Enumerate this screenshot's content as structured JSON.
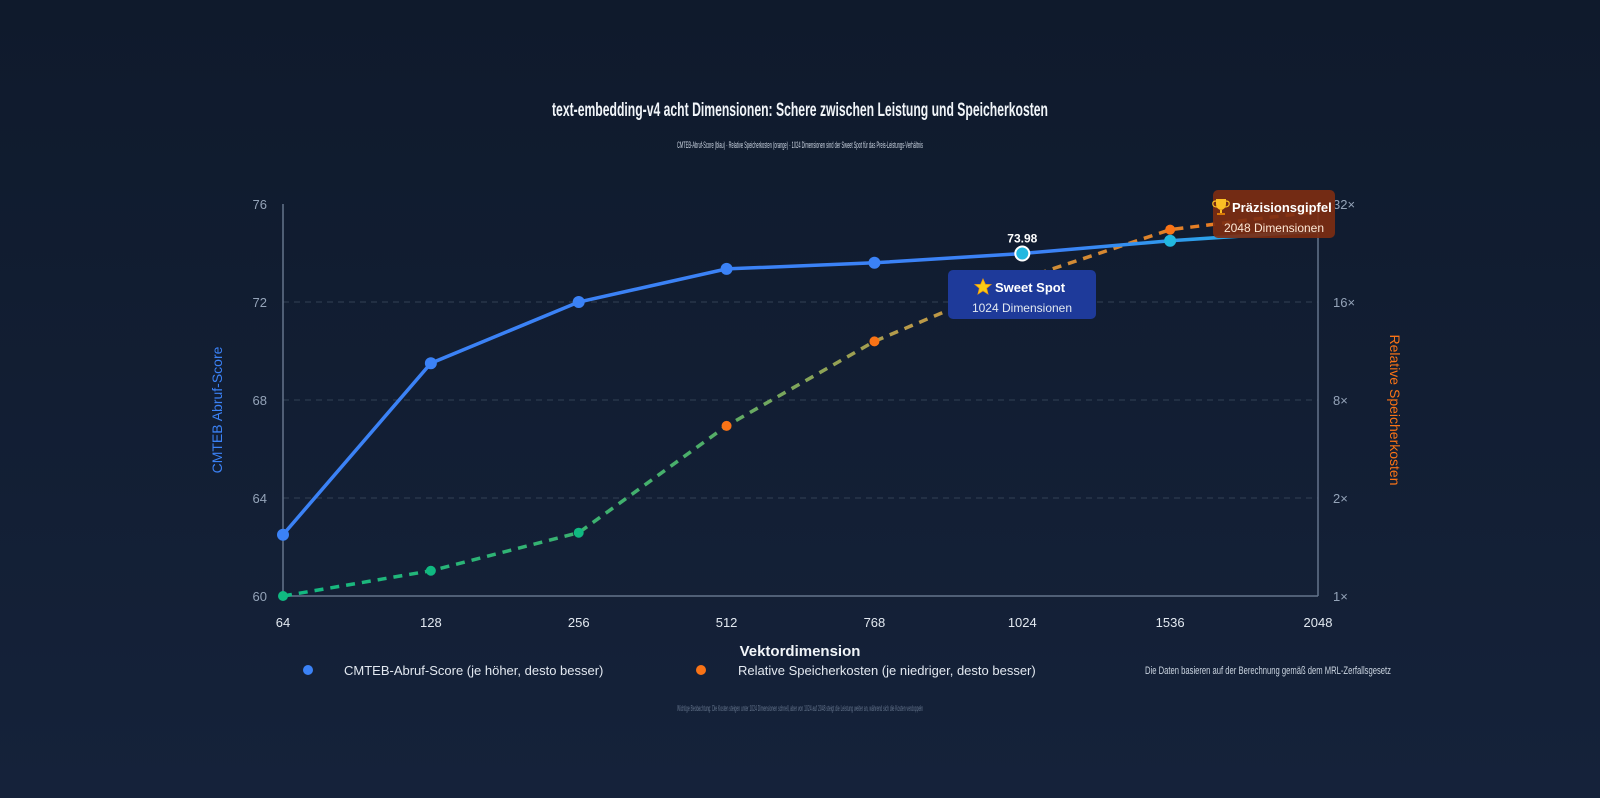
{
  "chart_data": {
    "type": "line",
    "title": "text-embedding-v4 acht Dimensionen: Schere zwischen Leistung und Speicherkosten",
    "subtitle": "CMTEB-Abruf-Score (blau) · Relative Speicherkosten (orange) · 1024 Dimensionen sind der Sweet Spot für das Preis-Leistungs-Verhältnis",
    "xlabel": "Vektordimension",
    "ylabel_left": "CMTEB Abruf-Score",
    "ylabel_right": "Relative Speicherkosten",
    "categories": [
      "64",
      "128",
      "256",
      "512",
      "768",
      "1024",
      "1536",
      "2048"
    ],
    "y_left_ticks": [
      "60",
      "64",
      "68",
      "72",
      "76"
    ],
    "y_left_lim": [
      60,
      76
    ],
    "y_right_ticks": [
      "1×",
      "2×",
      "8×",
      "16×",
      "32×"
    ],
    "y_right_lim": [
      1,
      32
    ],
    "series": [
      {
        "name": "CMTEB-Abruf-Score (je höher, desto besser)",
        "axis": "left",
        "values": [
          62.5,
          69.5,
          72.0,
          73.35,
          73.6,
          73.98,
          74.5,
          74.9
        ]
      },
      {
        "name": "Relative Speicherkosten (je niedriger, desto besser)",
        "axis": "right",
        "values": [
          1,
          1.25,
          1.75,
          4.5,
          9.5,
          16.5,
          25.5,
          30
        ]
      }
    ],
    "data_label": "73.98",
    "annotations": [
      {
        "title": "Sweet Spot",
        "icon": "star-icon",
        "text": "1024 Dimensionen",
        "at": "1024"
      },
      {
        "title": "Präzisionsgipfel",
        "icon": "trophy-icon",
        "text": "2048 Dimensionen",
        "at": "2048"
      }
    ],
    "grid": true,
    "legend_position": "bottom"
  },
  "legend_note": "Die Daten basieren auf der Berechnung gemäß dem MRL-Zerfallsgesetz",
  "footnote": "Wichtige Beobachtung: Die Kosten steigen unter 1024 Dimensionen schnell, aber von 1024 auf 2048 steigt die Leistung weiter an, während sich die Kosten verdoppeln",
  "colors": {
    "score": "#3b82f6",
    "score_end": "#22b8e0",
    "cost_low": "#10b981",
    "cost_high": "#f97316",
    "sweet_box": "#1e3a9a",
    "peak_box": "#7c2d12",
    "axis": "#64748b",
    "grid": "#334155",
    "tick": "#94a3b8"
  }
}
